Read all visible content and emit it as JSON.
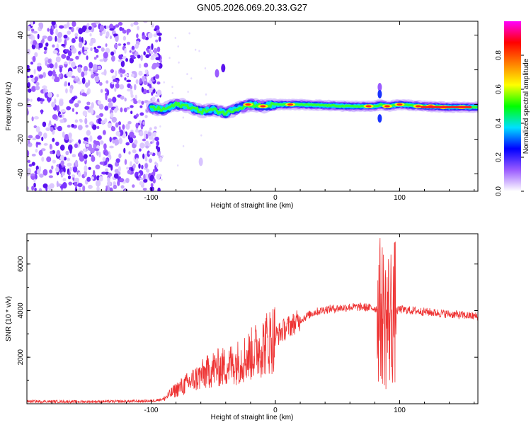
{
  "title": "GN05.2026.069.20.33.G27",
  "chart_data": [
    {
      "type": "heatmap",
      "title": "GN05.2026.069.20.33.G27",
      "xlabel": "Height of straight line (km)",
      "ylabel": "Frequency (Hz)",
      "xlim": [
        -200,
        163
      ],
      "ylim": [
        -50,
        48
      ],
      "xticks": [
        "-100",
        "0",
        "100"
      ],
      "yticks": [
        "40",
        "20",
        "0",
        "-20",
        "-40"
      ],
      "noise_region_x": [
        -200,
        -95
      ],
      "signal_ridge": {
        "x": [
          -100,
          -90,
          -80,
          -70,
          -60,
          -50,
          -40,
          -30,
          -20,
          -10,
          0,
          20,
          40,
          60,
          75,
          80,
          85,
          90,
          100,
          120,
          140,
          163
        ],
        "frequency": [
          -2,
          -3,
          0,
          -1,
          -4,
          -3,
          -5,
          -2,
          0,
          -1,
          0,
          0,
          -0.5,
          -1,
          -1,
          -1,
          0,
          -1,
          0,
          -1,
          -1.5,
          -1.5
        ]
      },
      "colorbar": {
        "label": "Normalized spectral amplitude",
        "range": [
          0.0,
          1.0
        ],
        "ticks": [
          "0.0",
          "0.2",
          "0.4",
          "0.6",
          "0.8"
        ],
        "colors": [
          "#ffffff",
          "#9b5cff",
          "#0000ff",
          "#00e0ff",
          "#00ff00",
          "#ffff00",
          "#ff8000",
          "#ff0000",
          "#ff00ff"
        ]
      }
    },
    {
      "type": "line",
      "xlabel": "Height of straight line (km)",
      "ylabel": "SNR (10 * v/v)",
      "xlim": [
        -200,
        163
      ],
      "ylim": [
        0,
        7300
      ],
      "xticks": [
        "-100",
        "0",
        "100"
      ],
      "yticks": [
        "2000",
        "4000",
        "6000"
      ],
      "series": [
        {
          "name": "SNR",
          "color": "#ee3333",
          "x": [
            -200,
            -160,
            -120,
            -100,
            -90,
            -80,
            -70,
            -60,
            -50,
            -40,
            -30,
            -20,
            -10,
            0,
            10,
            20,
            30,
            40,
            50,
            60,
            70,
            80,
            85,
            90,
            95,
            100,
            110,
            120,
            140,
            163
          ],
          "y": [
            100,
            90,
            100,
            120,
            200,
            600,
            900,
            1200,
            1500,
            1600,
            1800,
            2100,
            2500,
            2900,
            3300,
            3600,
            3900,
            4050,
            4100,
            4150,
            4150,
            4100,
            4000,
            3600,
            3900,
            4050,
            4000,
            3950,
            3850,
            3750
          ]
        }
      ]
    }
  ]
}
